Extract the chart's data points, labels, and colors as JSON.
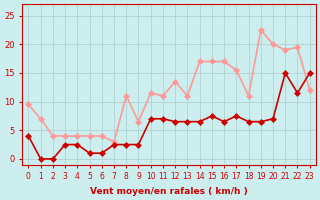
{
  "hours": [
    0,
    1,
    2,
    3,
    4,
    5,
    6,
    7,
    8,
    9,
    10,
    11,
    12,
    13,
    14,
    15,
    16,
    17,
    18,
    19,
    20,
    21,
    22,
    23
  ],
  "vent_moyen": [
    4,
    0,
    0,
    2.5,
    2.5,
    1,
    1,
    2.5,
    2.5,
    2.5,
    7,
    7,
    6.5,
    6.5,
    6.5,
    7.5,
    6.5,
    7.5,
    6.5,
    6.5,
    7,
    15,
    11.5,
    15
  ],
  "rafales": [
    9.5,
    7,
    4,
    4,
    4,
    4,
    4,
    3,
    11,
    6.5,
    11.5,
    11,
    13.5,
    11,
    17,
    17,
    17,
    15.5,
    11,
    22.5,
    20,
    19,
    19.5,
    12
  ],
  "color_moyen": "#cc0000",
  "color_rafales": "#ff9999",
  "bg_color": "#cceeee",
  "grid_color": "#aacccc",
  "xlabel": "Vent moyen/en rafales ( km/h )",
  "xlabel_color": "#cc0000",
  "ylim": [
    -1,
    27
  ],
  "yticks": [
    0,
    5,
    10,
    15,
    20,
    25
  ],
  "marker_size": 3,
  "line_width": 1.2
}
